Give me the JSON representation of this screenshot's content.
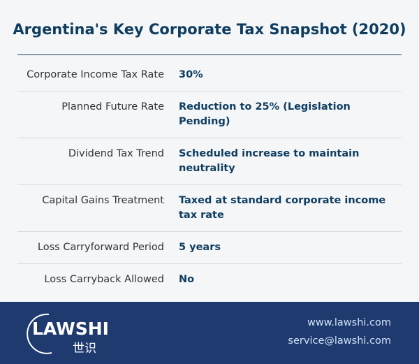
{
  "header": {
    "title": "Argentina's Key Corporate Tax Snapshot (2020)"
  },
  "table": {
    "rows": [
      [
        "Corporate Income Tax Rate",
        "30%"
      ],
      [
        "Planned Future Rate",
        "Reduction to 25% (Legislation Pending)"
      ],
      [
        "Dividend Tax Trend",
        "Scheduled increase to maintain neutrality"
      ],
      [
        "Capital Gains Treatment",
        "Taxed at standard corporate income tax rate"
      ],
      [
        "Loss Carryforward Period",
        "5 years"
      ],
      [
        "Loss Carryback Allowed",
        "No"
      ]
    ]
  },
  "footer": {
    "logo": {
      "name": "LAWSHI",
      "chinese": "世识"
    },
    "website": "www.lawshi.com",
    "email": "service@lawshi.com"
  }
}
